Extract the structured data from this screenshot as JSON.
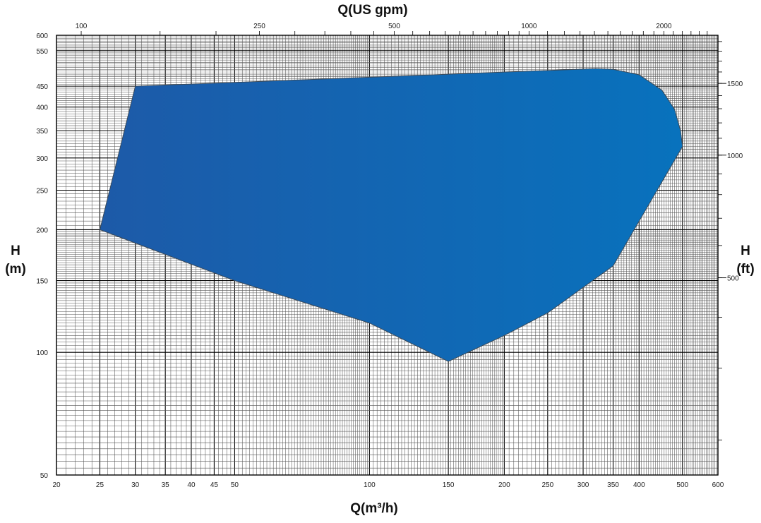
{
  "chart_data": {
    "type": "area",
    "title": "",
    "x_axis": {
      "label": "Q(m³/h)",
      "scale": "log",
      "range": [
        20,
        600
      ],
      "ticks": [
        20,
        25,
        30,
        35,
        40,
        45,
        50,
        100,
        150,
        200,
        250,
        300,
        350,
        400,
        500,
        600
      ]
    },
    "x2_axis": {
      "label": "Q(US gpm)",
      "scale": "log",
      "ticks": [
        100,
        250,
        500,
        1000,
        2000
      ]
    },
    "y_axis": {
      "label_line1": "H",
      "label_line2": "(m)",
      "scale": "log",
      "range": [
        50,
        600
      ],
      "ticks": [
        50,
        100,
        150,
        200,
        250,
        300,
        350,
        400,
        450,
        550,
        600
      ]
    },
    "y2_axis": {
      "label_line1": "H",
      "label_line2": "(ft)",
      "scale": "log",
      "ticks": [
        500,
        1000,
        1500
      ]
    },
    "grid": true,
    "series": [
      {
        "color": "#1a6fb3",
        "outline": [
          {
            "x": 25,
            "y": 200
          },
          {
            "x": 30,
            "y": 450
          },
          {
            "x": 320,
            "y": 497
          },
          {
            "x": 350,
            "y": 495
          },
          {
            "x": 400,
            "y": 480
          },
          {
            "x": 450,
            "y": 440
          },
          {
            "x": 480,
            "y": 395
          },
          {
            "x": 495,
            "y": 350
          },
          {
            "x": 500,
            "y": 320
          },
          {
            "x": 350,
            "y": 163
          },
          {
            "x": 250,
            "y": 125
          },
          {
            "x": 200,
            "y": 110
          },
          {
            "x": 150,
            "y": 95
          },
          {
            "x": 100,
            "y": 118
          },
          {
            "x": 50,
            "y": 150
          },
          {
            "x": 25,
            "y": 200
          }
        ]
      }
    ],
    "colors": {
      "fill_dark": "#1d5aa8",
      "fill_light": "#0872bd",
      "grid_minor": "#555555",
      "grid_major": "#000000"
    }
  }
}
